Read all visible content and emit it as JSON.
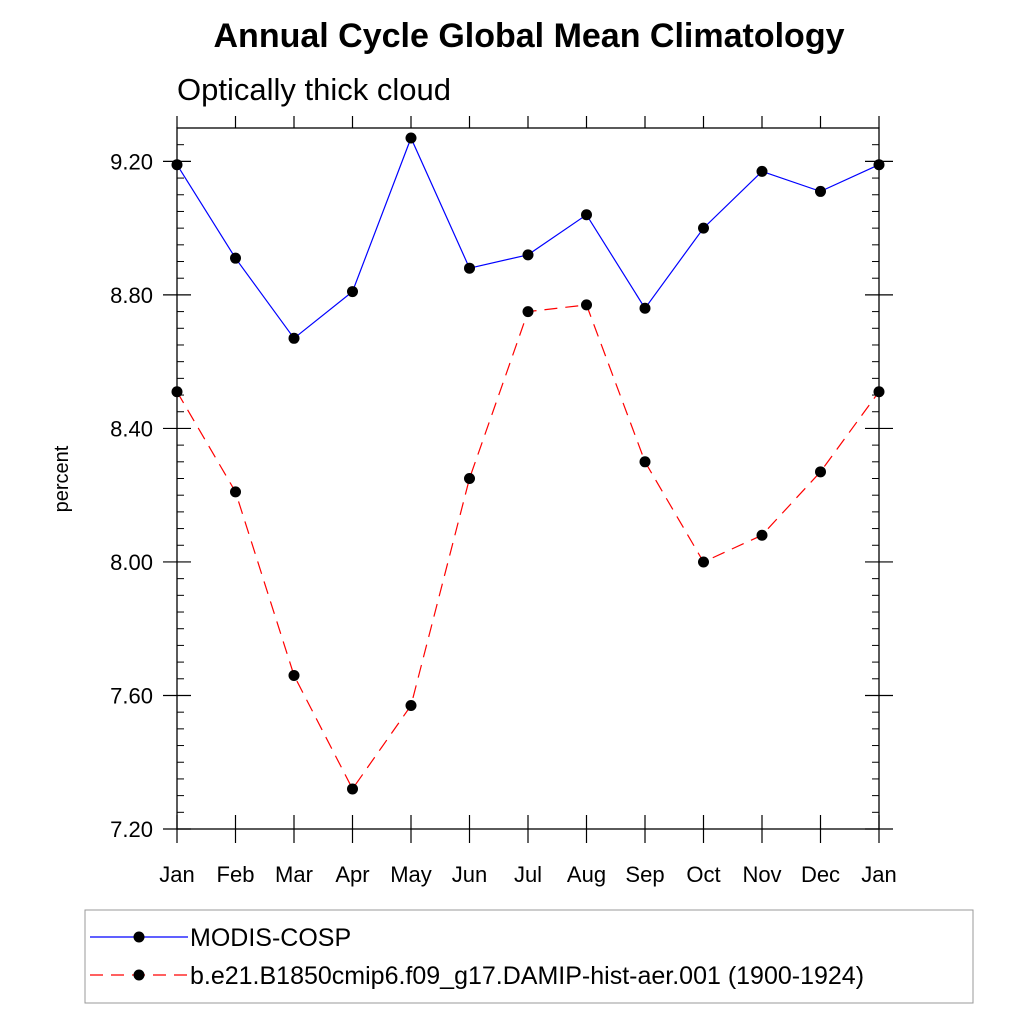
{
  "chart_data": {
    "type": "line",
    "title": "Annual Cycle Global Mean Climatology",
    "subtitle": "Optically thick cloud",
    "xlabel": "",
    "ylabel": "percent",
    "categories": [
      "Jan",
      "Feb",
      "Mar",
      "Apr",
      "May",
      "Jun",
      "Jul",
      "Aug",
      "Sep",
      "Oct",
      "Nov",
      "Dec",
      "Jan"
    ],
    "yticks": [
      "7.20",
      "7.60",
      "8.00",
      "8.40",
      "8.80",
      "9.20"
    ],
    "ylim": [
      7.2,
      9.3
    ],
    "grid": false,
    "legend_position": "bottom",
    "series": [
      {
        "name": "MODIS-COSP",
        "color": "#0000ff",
        "line_style": "solid",
        "marker": "filled-circle",
        "values": [
          9.19,
          8.91,
          8.67,
          8.81,
          9.27,
          8.88,
          8.92,
          9.04,
          8.76,
          9.0,
          9.17,
          9.11,
          9.19
        ]
      },
      {
        "name": "b.e21.B1850cmip6.f09_g17.DAMIP-hist-aer.001 (1900-1924)",
        "color": "#ff0000",
        "line_style": "dashed",
        "marker": "filled-circle",
        "values": [
          8.51,
          8.21,
          7.66,
          7.32,
          7.57,
          8.25,
          8.75,
          8.77,
          8.3,
          8.0,
          8.08,
          8.27,
          8.51
        ]
      }
    ]
  }
}
